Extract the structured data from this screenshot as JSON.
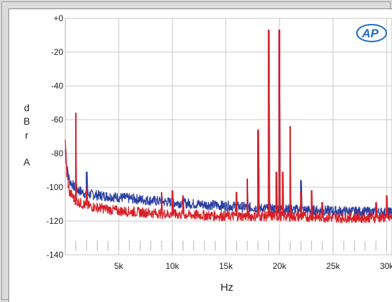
{
  "chart_data": {
    "type": "line",
    "xlabel": "Hz",
    "ylabel": "dBrA",
    "ylabel_chars": [
      "d",
      "B",
      "r",
      "A"
    ],
    "xlim": [
      20,
      30500
    ],
    "ylim": [
      -140,
      0
    ],
    "xticks": [
      {
        "v": 5000,
        "label": "5k"
      },
      {
        "v": 10000,
        "label": "10k"
      },
      {
        "v": 15000,
        "label": "15k"
      },
      {
        "v": 20000,
        "label": "20k"
      },
      {
        "v": 25000,
        "label": "25k"
      },
      {
        "v": 30000,
        "label": "30k"
      }
    ],
    "yticks": [
      {
        "v": 0,
        "label": "+0"
      },
      {
        "v": -20,
        "label": "-20"
      },
      {
        "v": -40,
        "label": "-40"
      },
      {
        "v": -60,
        "label": "-60"
      },
      {
        "v": -80,
        "label": "-80"
      },
      {
        "v": -100,
        "label": "-100"
      },
      {
        "v": -120,
        "label": "-120"
      },
      {
        "v": -140,
        "label": "-140"
      }
    ],
    "grid": true,
    "logo": "AP",
    "series": [
      {
        "color": "#2b3fa0",
        "floor": [
          [
            20,
            -78
          ],
          [
            150,
            -88
          ],
          [
            400,
            -96
          ],
          [
            1000,
            -101
          ],
          [
            2000,
            -104
          ],
          [
            5000,
            -106
          ],
          [
            10000,
            -109
          ],
          [
            15000,
            -111
          ],
          [
            20000,
            -113
          ],
          [
            25000,
            -114
          ],
          [
            30500,
            -115
          ]
        ],
        "peaks": [
          [
            1000,
            -92
          ],
          [
            2000,
            -91
          ],
          [
            17000,
            -96
          ],
          [
            19000,
            -7
          ],
          [
            20000,
            -7
          ],
          [
            22000,
            -96
          ],
          [
            18000,
            -67
          ],
          [
            21000,
            -64
          ]
        ]
      },
      {
        "color": "#d81f26",
        "floor": [
          [
            20,
            -72
          ],
          [
            150,
            -92
          ],
          [
            400,
            -103
          ],
          [
            1000,
            -108
          ],
          [
            2000,
            -111
          ],
          [
            5000,
            -114
          ],
          [
            10000,
            -116
          ],
          [
            15000,
            -117
          ],
          [
            20000,
            -117
          ],
          [
            25000,
            -118
          ],
          [
            30500,
            -118
          ]
        ],
        "peaks": [
          [
            1000,
            -56
          ],
          [
            2000,
            -101
          ],
          [
            9000,
            -103
          ],
          [
            10000,
            -102
          ],
          [
            11000,
            -105
          ],
          [
            16000,
            -103
          ],
          [
            17000,
            -95
          ],
          [
            18000,
            -66
          ],
          [
            19000,
            -7
          ],
          [
            19700,
            -91
          ],
          [
            20000,
            -7
          ],
          [
            20300,
            -91
          ],
          [
            21000,
            -64
          ],
          [
            22000,
            -103
          ],
          [
            23000,
            -102
          ],
          [
            24000,
            -109
          ],
          [
            29000,
            -109
          ],
          [
            30000,
            -105
          ]
        ]
      }
    ]
  }
}
